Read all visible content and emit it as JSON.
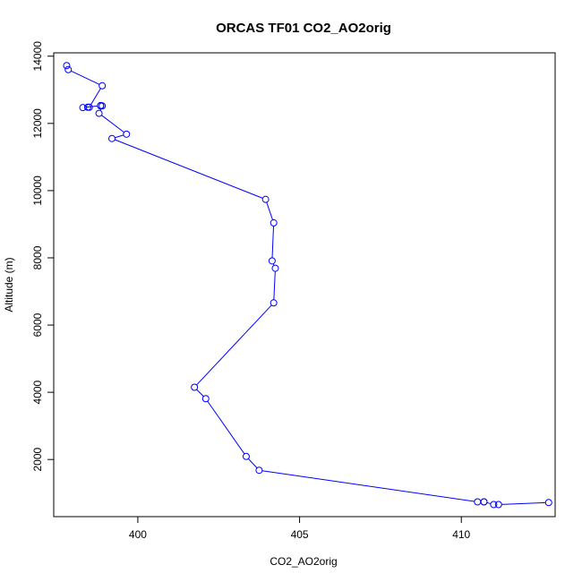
{
  "chart_data": {
    "type": "line",
    "title": "ORCAS TF01 CO2_AO2orig",
    "xlabel": "CO2_AO2orig",
    "ylabel": "Altitude (m)",
    "xlim": [
      397.4,
      412.9
    ],
    "ylim": [
      300,
      14100
    ],
    "x_ticks": [
      400,
      405,
      410
    ],
    "y_ticks": [
      2000,
      4000,
      6000,
      8000,
      10000,
      12000,
      14000
    ],
    "grid": false,
    "legend": "none",
    "color": "#0000ff",
    "series": [
      {
        "x": [
          397.8,
          397.85,
          398.9,
          398.5,
          398.45,
          398.3,
          398.85,
          398.85,
          398.9,
          398.8,
          399.65,
          399.2,
          403.95,
          404.2,
          404.15,
          404.25,
          404.2,
          401.75,
          402.1,
          403.35,
          403.75,
          410.5,
          410.7,
          410.7,
          411.0,
          411.15,
          412.7
        ],
        "y": [
          13720,
          13600,
          13120,
          12480,
          12480,
          12470,
          12530,
          12520,
          12520,
          12300,
          11680,
          11550,
          9740,
          9040,
          7910,
          7690,
          6660,
          4150,
          3810,
          2090,
          1680,
          740,
          740,
          740,
          660,
          660,
          720
        ]
      }
    ]
  }
}
